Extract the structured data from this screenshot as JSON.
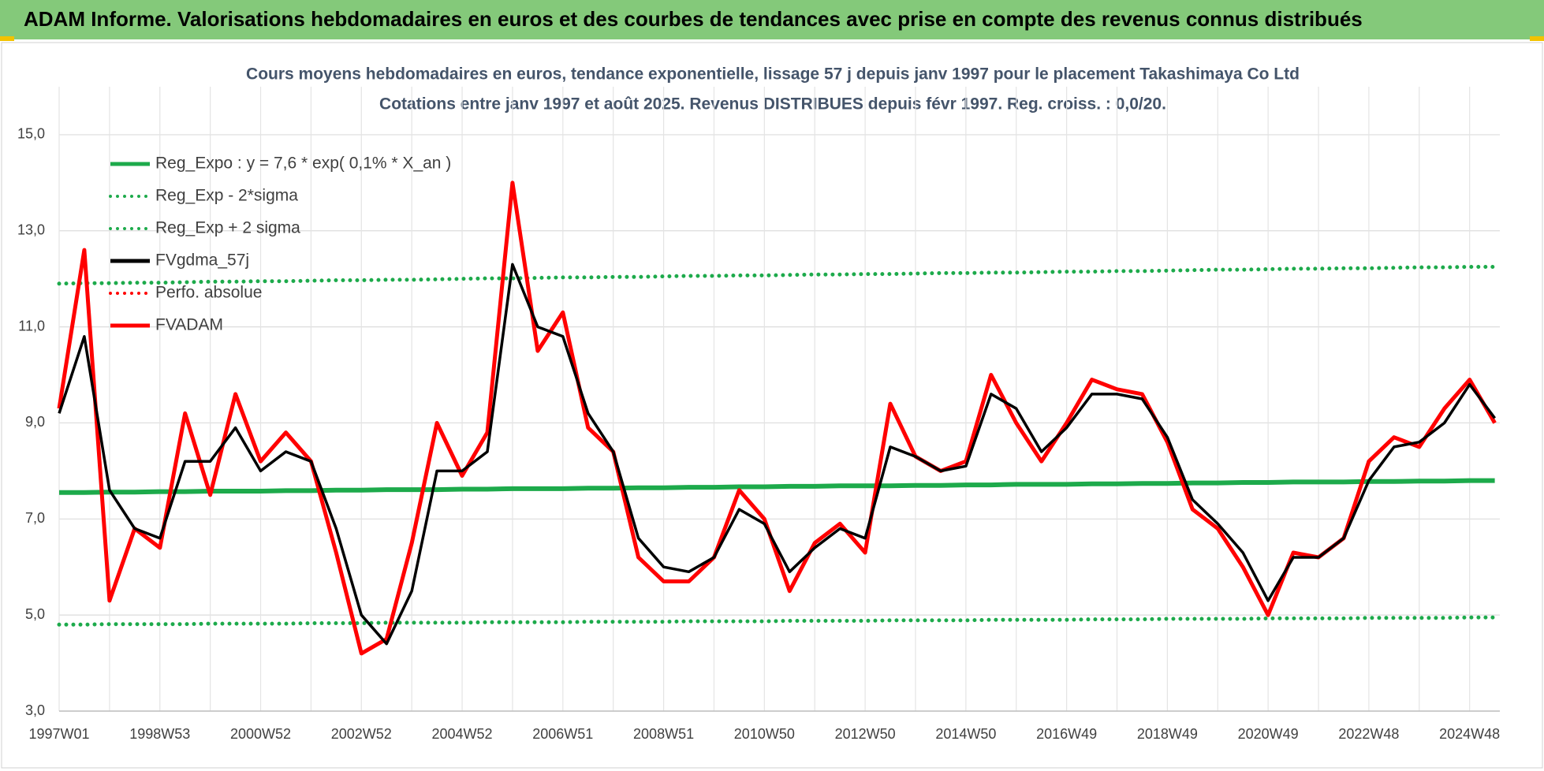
{
  "header": {
    "title": "ADAM Informe. Valorisations hebdomadaires en euros et des courbes de tendances avec prise en compte des revenus connus distribués"
  },
  "chart_data": {
    "type": "line",
    "title": "Cours moyens hebdomadaires en euros, tendance exponentielle, lissage 57 j depuis janv 1997 pour le placement Takashimaya Co Ltd",
    "subtitle": "Cotations entre janv 1997 et août 2025.  Revenus DISTRIBUES depuis févr 1997.  Reg. croiss. : 0,0/20.",
    "categories": [
      "1997W01",
      null,
      null,
      null,
      "1998W53",
      null,
      null,
      null,
      "2000W52",
      null,
      null,
      null,
      "2002W52",
      null,
      null,
      null,
      "2004W52",
      null,
      null,
      null,
      "2006W51",
      null,
      null,
      null,
      "2008W51",
      null,
      null,
      null,
      "2010W50",
      null,
      null,
      null,
      "2012W50",
      null,
      null,
      null,
      "2014W50",
      null,
      null,
      null,
      "2016W49",
      null,
      null,
      null,
      "2018W49",
      null,
      null,
      null,
      "2020W49",
      null,
      null,
      null,
      "2022W48",
      null,
      null,
      null,
      "2024W48",
      null
    ],
    "ylim": [
      3,
      16
    ],
    "yticks": [
      {
        "value": 3,
        "label": "3,0"
      },
      {
        "value": 5,
        "label": "5,0"
      },
      {
        "value": 7,
        "label": "7,0"
      },
      {
        "value": 9,
        "label": "9,0"
      },
      {
        "value": 11,
        "label": "11,0"
      },
      {
        "value": 13,
        "label": "13,0"
      },
      {
        "value": 15,
        "label": "15,0"
      }
    ],
    "grid": true,
    "legend": "top-left",
    "series": [
      {
        "name": "Reg_Expo : y = 7,6 * exp( 0,1% *  X_an )",
        "color": "#1daa4b",
        "style": "solid",
        "values": [
          7.55,
          7.55,
          7.56,
          7.56,
          7.57,
          7.57,
          7.58,
          7.58,
          7.58,
          7.59,
          7.59,
          7.6,
          7.6,
          7.61,
          7.61,
          7.61,
          7.62,
          7.62,
          7.63,
          7.63,
          7.63,
          7.64,
          7.64,
          7.65,
          7.65,
          7.66,
          7.66,
          7.67,
          7.67,
          7.68,
          7.68,
          7.69,
          7.69,
          7.69,
          7.7,
          7.7,
          7.71,
          7.71,
          7.72,
          7.72,
          7.72,
          7.73,
          7.73,
          7.74,
          7.74,
          7.75,
          7.75,
          7.76,
          7.76,
          7.77,
          7.77,
          7.77,
          7.78,
          7.78,
          7.79,
          7.79,
          7.8,
          7.8
        ]
      },
      {
        "name": "Reg_Exp - 2*sigma",
        "color": "#1daa4b",
        "style": "dotted",
        "values": [
          4.8,
          4.8,
          4.81,
          4.81,
          4.81,
          4.81,
          4.82,
          4.82,
          4.82,
          4.82,
          4.83,
          4.83,
          4.83,
          4.84,
          4.84,
          4.84,
          4.84,
          4.85,
          4.85,
          4.85,
          4.85,
          4.86,
          4.86,
          4.86,
          4.86,
          4.87,
          4.87,
          4.87,
          4.87,
          4.88,
          4.88,
          4.88,
          4.88,
          4.89,
          4.89,
          4.89,
          4.89,
          4.9,
          4.9,
          4.9,
          4.9,
          4.91,
          4.91,
          4.91,
          4.92,
          4.92,
          4.92,
          4.92,
          4.93,
          4.93,
          4.93,
          4.93,
          4.94,
          4.94,
          4.94,
          4.94,
          4.95,
          4.95
        ]
      },
      {
        "name": "Reg_Exp + 2 sigma",
        "color": "#1daa4b",
        "style": "dotted",
        "values": [
          11.9,
          11.91,
          11.91,
          11.92,
          11.92,
          11.93,
          11.94,
          11.94,
          11.95,
          11.95,
          11.96,
          11.97,
          11.97,
          11.98,
          11.98,
          11.99,
          12.0,
          12.01,
          12.01,
          12.02,
          12.03,
          12.03,
          12.04,
          12.04,
          12.05,
          12.06,
          12.06,
          12.07,
          12.07,
          12.08,
          12.09,
          12.09,
          12.1,
          12.1,
          12.11,
          12.12,
          12.12,
          12.13,
          12.13,
          12.14,
          12.15,
          12.15,
          12.16,
          12.16,
          12.17,
          12.18,
          12.19,
          12.19,
          12.2,
          12.21,
          12.21,
          12.22,
          12.22,
          12.23,
          12.24,
          12.24,
          12.25,
          12.25
        ]
      },
      {
        "name": "FVgdma_57j",
        "color": "#000000",
        "style": "solid",
        "values": [
          9.2,
          10.8,
          7.6,
          6.8,
          6.6,
          8.2,
          8.2,
          8.9,
          8.0,
          8.4,
          8.2,
          6.8,
          5.0,
          4.4,
          5.5,
          8.0,
          8.0,
          8.4,
          12.3,
          11.0,
          10.8,
          9.2,
          8.4,
          6.6,
          6.0,
          5.9,
          6.2,
          7.2,
          6.9,
          5.9,
          6.4,
          6.8,
          6.6,
          8.5,
          8.3,
          8.0,
          8.1,
          9.6,
          9.3,
          8.4,
          8.9,
          9.6,
          9.6,
          9.5,
          8.7,
          7.4,
          6.9,
          6.3,
          5.3,
          6.2,
          6.2,
          6.6,
          7.8,
          8.5,
          8.6,
          9.0,
          9.8,
          9.1
        ]
      },
      {
        "name": "Perfo. absolue",
        "color": "#ff0000",
        "style": "dotted",
        "values": [
          null,
          null,
          null,
          null,
          null,
          null,
          null,
          null,
          null,
          null,
          null,
          null,
          null,
          null,
          null,
          null,
          null,
          null,
          null,
          null,
          null,
          null,
          null,
          null,
          null,
          null,
          null,
          null,
          null,
          null,
          null,
          null,
          null,
          null,
          null,
          null,
          null,
          null,
          null,
          null,
          null,
          null,
          null,
          null,
          null,
          null,
          null,
          null,
          null,
          null,
          null,
          null,
          null,
          null,
          null,
          null,
          null,
          null
        ]
      },
      {
        "name": "FVADAM",
        "color": "#ff0000",
        "style": "solid",
        "values": [
          9.3,
          12.6,
          5.3,
          6.8,
          6.4,
          9.2,
          7.5,
          9.6,
          8.2,
          8.8,
          8.2,
          6.3,
          4.2,
          4.5,
          6.5,
          9.0,
          7.9,
          8.8,
          14.0,
          10.5,
          11.3,
          8.9,
          8.4,
          6.2,
          5.7,
          5.7,
          6.2,
          7.6,
          7.0,
          5.5,
          6.5,
          6.9,
          6.3,
          9.4,
          8.3,
          8.0,
          8.2,
          10.0,
          9.0,
          8.2,
          9.0,
          9.9,
          9.7,
          9.6,
          8.6,
          7.2,
          6.8,
          6.0,
          5.0,
          6.3,
          6.2,
          6.6,
          8.2,
          8.7,
          8.5,
          9.3,
          9.9,
          9.0
        ]
      }
    ]
  }
}
